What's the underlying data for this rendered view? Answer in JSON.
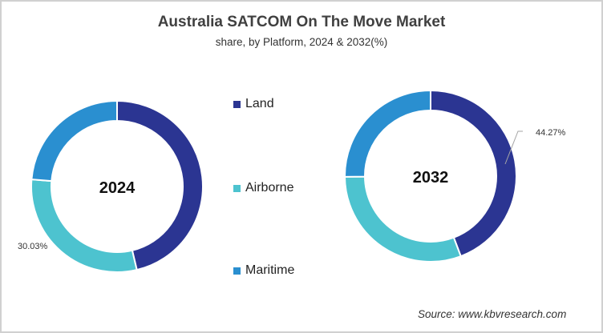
{
  "header": {
    "title": "Australia SATCOM On The Move Market",
    "subtitle": "share, by Platform, 2024 & 2032(%)"
  },
  "legend": {
    "items": [
      {
        "label": "Land",
        "color": "#2B3592"
      },
      {
        "label": "Airborne",
        "color": "#4DC3CF"
      },
      {
        "label": "Maritime",
        "color": "#2A8FD0"
      }
    ]
  },
  "donuts": [
    {
      "center_label": "2024",
      "visible_label": "30.03%"
    },
    {
      "center_label": "2032",
      "visible_label": "44.27%"
    }
  ],
  "footer": {
    "source": "Source: www.kbvresearch.com"
  },
  "chart_data": [
    {
      "type": "pie",
      "subtype": "donut",
      "title": "Australia SATCOM On The Move Market",
      "subtitle": "share, by Platform, 2024 & 2032(%)",
      "center_label": "2024",
      "categories": [
        "Land",
        "Airborne",
        "Maritime"
      ],
      "values": [
        46.3,
        30.03,
        23.67
      ],
      "labeled_values": {
        "Airborne": 30.03
      },
      "legend_position": "center-between"
    },
    {
      "type": "pie",
      "subtype": "donut",
      "title": "Australia SATCOM On The Move Market",
      "subtitle": "share, by Platform, 2024 & 2032(%)",
      "center_label": "2032",
      "categories": [
        "Land",
        "Airborne",
        "Maritime"
      ],
      "values": [
        44.27,
        30.6,
        25.13
      ],
      "labeled_values": {
        "Land": 44.27
      },
      "legend_position": "center-between"
    }
  ]
}
